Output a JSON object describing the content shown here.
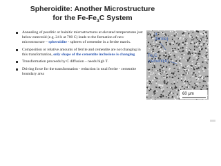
{
  "title": {
    "line1": "Spheroidite:  Another Microstructure",
    "line2_pre": "for the Fe-Fe",
    "line2_sub": "3",
    "line2_post": "C System"
  },
  "bullets": [
    {
      "parts": [
        {
          "text": "Annealing of pearlitic or bainitic microstructures at elevated temperatures just below eutectoid (e.g. 24 h at 700 C) leads to the formation of new microstructure – ",
          "em": false
        },
        {
          "text": "spheroidite",
          "em": true
        },
        {
          "text": " - spheres of cementite in a ferrite matrix.",
          "em": false
        }
      ]
    },
    {
      "parts": [
        {
          "text": "Composition or relative amounts of ferrite and cementite are not changing in this transformation, ",
          "em": false
        },
        {
          "text": "only shape of the cementite inclusions is changing",
          "em": true
        }
      ]
    },
    {
      "parts": [
        {
          "text": "Transformation proceeds by C diffusion – needs high T.",
          "em": false
        }
      ]
    },
    {
      "parts": [
        {
          "text": "Driving force for the transformation - reduction in total ferrite - cementite boundary area",
          "em": false
        }
      ]
    }
  ],
  "figure": {
    "alpha": "α",
    "ferrite": "(ferrite)",
    "fe3c_pre": "Fe",
    "fe3c_sub": "3",
    "fe3c_post": "C",
    "cementite": "(cementite)",
    "scale": "60 μm"
  }
}
